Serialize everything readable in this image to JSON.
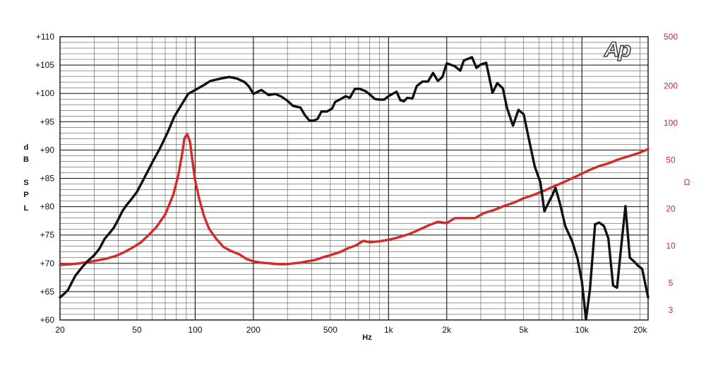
{
  "chart_data": {
    "type": "line",
    "title": "",
    "logo": "Ap",
    "xlabel": "Hz",
    "x_scale": "log",
    "xlim": [
      20,
      22000
    ],
    "x_ticks": [
      {
        "value": 20,
        "label": "20"
      },
      {
        "value": 50,
        "label": "50"
      },
      {
        "value": 100,
        "label": "100"
      },
      {
        "value": 200,
        "label": "200"
      },
      {
        "value": 500,
        "label": "500"
      },
      {
        "value": 1000,
        "label": "1k"
      },
      {
        "value": 2000,
        "label": "2k"
      },
      {
        "value": 5000,
        "label": "5k"
      },
      {
        "value": 10000,
        "label": "10k"
      },
      {
        "value": 20000,
        "label": "20k"
      }
    ],
    "ylabel_left": "d B S P L",
    "ylim_left": [
      60,
      110
    ],
    "y_ticks_left": [
      "+60",
      "+65",
      "+70",
      "+75",
      "+80",
      "+85",
      "+90",
      "+95",
      "+100",
      "+105",
      "+110"
    ],
    "ylabel_right": "Ω",
    "y_scale_right": "log",
    "ylim_right": [
      2.5,
      500
    ],
    "y_ticks_right": [
      {
        "value": 3,
        "label": "3"
      },
      {
        "value": 5,
        "label": "5"
      },
      {
        "value": 10,
        "label": "10"
      },
      {
        "value": 20,
        "label": "20"
      },
      {
        "value": 50,
        "label": "50"
      },
      {
        "value": 100,
        "label": "100"
      },
      {
        "value": 200,
        "label": "200"
      },
      {
        "value": 500,
        "label": "500"
      }
    ],
    "grid": true,
    "colors": {
      "spl": "#111111",
      "impedance": "#d42a2a",
      "grid": "#333333",
      "right_axis": "#d42a2a"
    },
    "series": [
      {
        "axis": "left",
        "points": [
          [
            20,
            64
          ],
          [
            21,
            64.6
          ],
          [
            22,
            65.3
          ],
          [
            23,
            66.6
          ],
          [
            24,
            67.8
          ],
          [
            26,
            69.3
          ],
          [
            28,
            70.5
          ],
          [
            30,
            71.4
          ],
          [
            32,
            72.6
          ],
          [
            34,
            74.3
          ],
          [
            36,
            75.3
          ],
          [
            38,
            76.3
          ],
          [
            40,
            77.7
          ],
          [
            42,
            79.2
          ],
          [
            44,
            80.2
          ],
          [
            47,
            81.4
          ],
          [
            50,
            82.6
          ],
          [
            55,
            85.3
          ],
          [
            60,
            87.8
          ],
          [
            66,
            90.4
          ],
          [
            72,
            93.1
          ],
          [
            78,
            95.9
          ],
          [
            85,
            98
          ],
          [
            92,
            99.9
          ],
          [
            100,
            100.6
          ],
          [
            110,
            101.4
          ],
          [
            120,
            102.2
          ],
          [
            135,
            102.6
          ],
          [
            150,
            102.9
          ],
          [
            165,
            102.6
          ],
          [
            180,
            102
          ],
          [
            190,
            101.2
          ],
          [
            200,
            99.9
          ],
          [
            220,
            100.6
          ],
          [
            240,
            99.7
          ],
          [
            260,
            99.9
          ],
          [
            280,
            99.4
          ],
          [
            300,
            98.7
          ],
          [
            320,
            97.8
          ],
          [
            350,
            97.5
          ],
          [
            370,
            96.1
          ],
          [
            390,
            95.2
          ],
          [
            410,
            95.2
          ],
          [
            430,
            95.5
          ],
          [
            450,
            96.8
          ],
          [
            480,
            96.8
          ],
          [
            510,
            97.3
          ],
          [
            530,
            98.5
          ],
          [
            560,
            98.9
          ],
          [
            600,
            99.5
          ],
          [
            630,
            99.2
          ],
          [
            670,
            100.8
          ],
          [
            710,
            100.8
          ],
          [
            760,
            100.4
          ],
          [
            800,
            99.8
          ],
          [
            850,
            99
          ],
          [
            900,
            98.9
          ],
          [
            950,
            98.9
          ],
          [
            1000,
            99.5
          ],
          [
            1100,
            100.3
          ],
          [
            1150,
            98.8
          ],
          [
            1200,
            98.6
          ],
          [
            1250,
            99.2
          ],
          [
            1330,
            99.1
          ],
          [
            1400,
            101.3
          ],
          [
            1500,
            102.1
          ],
          [
            1600,
            102.1
          ],
          [
            1700,
            103.6
          ],
          [
            1800,
            102.2
          ],
          [
            1900,
            102.9
          ],
          [
            2000,
            105.3
          ],
          [
            2200,
            104.8
          ],
          [
            2350,
            104
          ],
          [
            2450,
            105.8
          ],
          [
            2700,
            106.4
          ],
          [
            2850,
            104.5
          ],
          [
            3000,
            105.1
          ],
          [
            3200,
            105.4
          ],
          [
            3450,
            100.1
          ],
          [
            3650,
            101.8
          ],
          [
            3900,
            100.9
          ],
          [
            4100,
            97.4
          ],
          [
            4400,
            94.3
          ],
          [
            4700,
            97.1
          ],
          [
            5000,
            96.3
          ],
          [
            5300,
            92.2
          ],
          [
            5700,
            87.1
          ],
          [
            6100,
            84.3
          ],
          [
            6400,
            79.2
          ],
          [
            6700,
            80.6
          ],
          [
            7000,
            81.9
          ],
          [
            7300,
            83.3
          ],
          [
            7700,
            80.6
          ],
          [
            8200,
            76.6
          ],
          [
            8900,
            73.9
          ],
          [
            9500,
            70.8
          ],
          [
            10000,
            66.8
          ],
          [
            10500,
            60.1
          ],
          [
            11000,
            65.4
          ],
          [
            11700,
            76.9
          ],
          [
            12300,
            77.2
          ],
          [
            13000,
            76.6
          ],
          [
            13700,
            74.4
          ],
          [
            14500,
            66.1
          ],
          [
            15200,
            65.7
          ],
          [
            16000,
            73.2
          ],
          [
            16800,
            80.1
          ],
          [
            17700,
            71
          ],
          [
            18500,
            70.4
          ],
          [
            19500,
            69.6
          ],
          [
            20500,
            69
          ],
          [
            22000,
            64
          ]
        ]
      },
      {
        "axis": "right",
        "points": [
          [
            20,
            7
          ],
          [
            23,
            7.1
          ],
          [
            25,
            7.2
          ],
          [
            28,
            7.4
          ],
          [
            31,
            7.6
          ],
          [
            35,
            7.9
          ],
          [
            39,
            8.3
          ],
          [
            43,
            8.9
          ],
          [
            47,
            9.6
          ],
          [
            52,
            10.6
          ],
          [
            57,
            12.1
          ],
          [
            63,
            14.2
          ],
          [
            70,
            18
          ],
          [
            77,
            26
          ],
          [
            82,
            38
          ],
          [
            86,
            58
          ],
          [
            88,
            75
          ],
          [
            91,
            81
          ],
          [
            94,
            70
          ],
          [
            97,
            48
          ],
          [
            100,
            34
          ],
          [
            105,
            24
          ],
          [
            111,
            17.5
          ],
          [
            118,
            13.8
          ],
          [
            128,
            11.5
          ],
          [
            140,
            9.8
          ],
          [
            153,
            9.1
          ],
          [
            170,
            8.5
          ],
          [
            185,
            7.8
          ],
          [
            200,
            7.5
          ],
          [
            220,
            7.3
          ],
          [
            245,
            7.2
          ],
          [
            270,
            7.1
          ],
          [
            300,
            7.1
          ],
          [
            320,
            7.2
          ],
          [
            350,
            7.3
          ],
          [
            380,
            7.5
          ],
          [
            420,
            7.7
          ],
          [
            460,
            8.1
          ],
          [
            500,
            8.4
          ],
          [
            560,
            8.9
          ],
          [
            620,
            9.6
          ],
          [
            680,
            10.1
          ],
          [
            740,
            11
          ],
          [
            800,
            10.7
          ],
          [
            900,
            10.9
          ],
          [
            1000,
            11.2
          ],
          [
            1100,
            11.6
          ],
          [
            1200,
            12.1
          ],
          [
            1300,
            12.6
          ],
          [
            1450,
            13.6
          ],
          [
            1600,
            14.6
          ],
          [
            1800,
            15.7
          ],
          [
            2000,
            15.3
          ],
          [
            2200,
            16.8
          ],
          [
            2500,
            16.8
          ],
          [
            2800,
            16.8
          ],
          [
            3100,
            18.4
          ],
          [
            3500,
            19.5
          ],
          [
            4000,
            21.2
          ],
          [
            4500,
            22.6
          ],
          [
            5000,
            24.4
          ],
          [
            5600,
            25.9
          ],
          [
            6300,
            27.8
          ],
          [
            7000,
            30
          ],
          [
            7800,
            32.2
          ],
          [
            8700,
            34.8
          ],
          [
            9800,
            38
          ],
          [
            11000,
            41.5
          ],
          [
            12300,
            44.5
          ],
          [
            13800,
            47
          ],
          [
            15500,
            50.5
          ],
          [
            17500,
            53.5
          ],
          [
            19500,
            56.5
          ],
          [
            22000,
            61
          ]
        ]
      }
    ]
  }
}
